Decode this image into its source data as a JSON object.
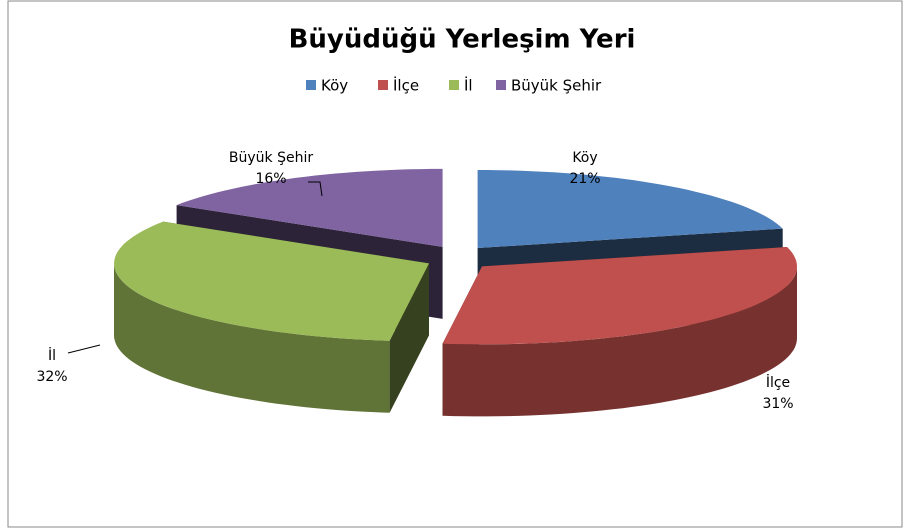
{
  "chart_data": {
    "type": "pie3d",
    "title": "Büyüdüğü Yerleşim Yeri",
    "categories": [
      "Köy",
      "İlçe",
      "İl",
      "Büyük Şehir"
    ],
    "values": [
      21,
      31,
      32,
      16
    ],
    "value_labels": [
      "21%",
      "31%",
      "32%",
      "16%"
    ],
    "colors": [
      "#4f81bd",
      "#c0504d",
      "#9bbb59",
      "#8064a2"
    ],
    "legend": "top"
  }
}
